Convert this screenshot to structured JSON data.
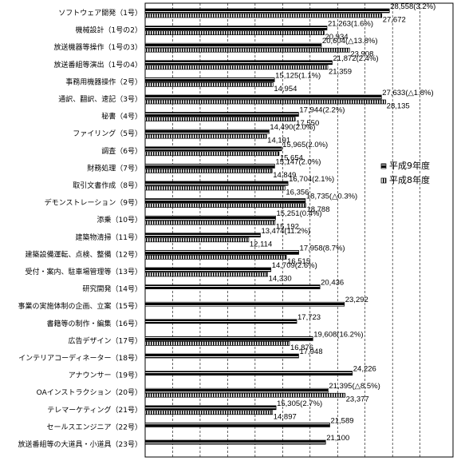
{
  "chart_data": {
    "type": "bar",
    "orientation": "horizontal",
    "categories": [
      "ソフトウェア開発（1号）",
      "機械設計（1号の2）",
      "放送機器等操作（1号の3）",
      "放送番組等演出（1号の4）",
      "事務用機器操作（2号）",
      "通訳、翻訳、速記（3号）",
      "秘書（4号）",
      "ファイリング（5号）",
      "調査（6号）",
      "財務処理（7号）",
      "取引文書作成（8号）",
      "デモンストレーション（9号）",
      "添乗（10号）",
      "建築物清掃（11号）",
      "建築設備運転、点検、整備（12号）",
      "受付・案内、駐車場管理等（13号）",
      "研究開発（14号）",
      "事業の実施体制の企画、立案（15号）",
      "書籍等の制作・編集（16号）",
      "広告デザイン（17号）",
      "インテリアコーディネーター（18号）",
      "アナウンサー（19号）",
      "OAインストラクション（20号）",
      "テレマーケティング（21号）",
      "セールスエンジニア（22号）",
      "放送番組等の大道具・小道具（23号）"
    ],
    "series": [
      {
        "name": "平成9年度",
        "color": "#000000",
        "values": [
          28558,
          21263,
          20604,
          21872,
          15125,
          27633,
          17944,
          14490,
          15965,
          15147,
          16704,
          18735,
          15251,
          13474,
          17958,
          14709,
          20436,
          23292,
          17723,
          19608,
          17948,
          24226,
          21395,
          15305,
          21589,
          21100
        ],
        "value_labels": [
          "28,558(3.2%)",
          "21,263(1.6%)",
          "20,604(△13.8%)",
          "21,872(2.4%)",
          "15,125(1.1%)",
          "27,633(△1.8%)",
          "17,944(2.2%)",
          "14,490(2.0%)",
          "15,965(2.0%)",
          "15,147(2.0%)",
          "16,704(2.1%)",
          "18,735(△0.3%)",
          "15,251(0.4%)",
          "13,474(11.2%)",
          "17,958(8.7%)",
          "14,709(2.6%)",
          "20,436",
          "23,292",
          "17,723",
          "19,608(16.2%)",
          "17,948",
          "24,226",
          "21,395(△8.5%)",
          "15,305(2.7%)",
          "21,589",
          "21,100"
        ]
      },
      {
        "name": "平成8年度",
        "color": "#000000",
        "values": [
          27672,
          20934,
          23908,
          21359,
          14954,
          28135,
          17550,
          14191,
          15654,
          14849,
          16356,
          18788,
          15192,
          12114,
          16515,
          14330,
          null,
          null,
          null,
          16876,
          null,
          null,
          23377,
          14897,
          null,
          null
        ],
        "value_labels": [
          "27,672",
          "20,934",
          "23,908",
          "21,359",
          "14,954",
          "28,135",
          "17,550",
          "14,191",
          "15,654",
          "14,849",
          "16,356",
          "18,788",
          "15,192",
          "12,114",
          "16,515",
          "14,330",
          null,
          null,
          null,
          "16,876",
          null,
          null,
          "23,377",
          "14,897",
          null,
          null
        ]
      }
    ],
    "xlim": [
      0,
      36000
    ]
  }
}
